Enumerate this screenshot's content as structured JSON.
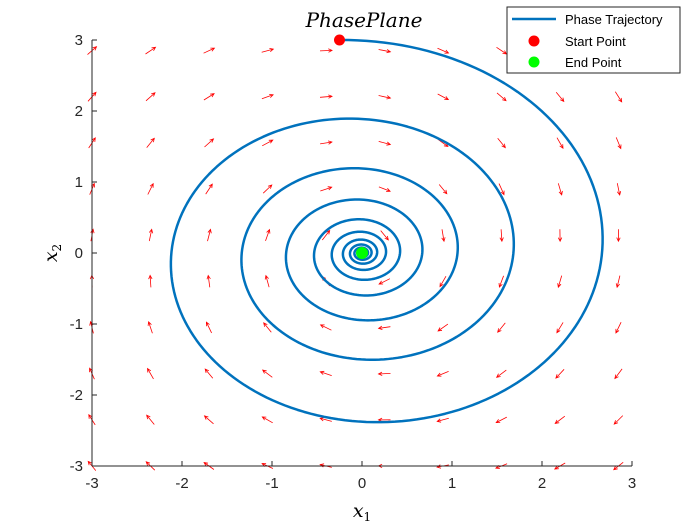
{
  "chart_data": {
    "type": "line",
    "title": "PhasePlane",
    "xlabel": {
      "base": "x",
      "sub": "1"
    },
    "ylabel": {
      "base": "x",
      "sub": "2"
    },
    "xlim": [
      -3,
      3
    ],
    "ylim": [
      -3,
      3
    ],
    "xticks": [
      "-3",
      "-2",
      "-1",
      "0",
      "1",
      "2",
      "3"
    ],
    "yticks": [
      "-3",
      "-2",
      "-1",
      "0",
      "1",
      "2",
      "3"
    ],
    "grid": false,
    "box": false,
    "legend_position": "top-right",
    "legend": [
      {
        "label": "Phase Trajectory",
        "kind": "line",
        "color": "#0072BD"
      },
      {
        "label": "Start Point",
        "kind": "marker",
        "color": "#FF0000"
      },
      {
        "label": "End Point",
        "kind": "marker",
        "color": "#00FF00"
      }
    ],
    "series": [
      {
        "name": "Phase Trajectory",
        "kind": "spiral",
        "color": "#0072BD",
        "start": [
          -0.25,
          3.0
        ],
        "end": [
          0.0,
          0.0
        ],
        "turns": 8.5,
        "winding": "clockwise"
      },
      {
        "name": "Start Point",
        "kind": "marker",
        "color": "#FF0000",
        "x": -0.25,
        "y": 3.0
      },
      {
        "name": "End Point",
        "kind": "marker",
        "color": "#00FF00",
        "x": 0.0,
        "y": 0.0
      }
    ],
    "vector_field": {
      "color": "#FF0000",
      "x": [
        -3.0,
        -2.35,
        -1.7,
        -1.05,
        -0.4,
        0.25,
        0.9,
        1.55,
        2.2,
        2.85
      ],
      "y": [
        -3.0,
        -2.35,
        -1.7,
        -1.05,
        -0.4,
        0.25,
        0.9,
        1.55,
        2.2,
        2.85
      ],
      "system": {
        "dx1": "x2 - 0.1*x1",
        "dx2": "-x1 - 0.1*x2"
      }
    }
  }
}
